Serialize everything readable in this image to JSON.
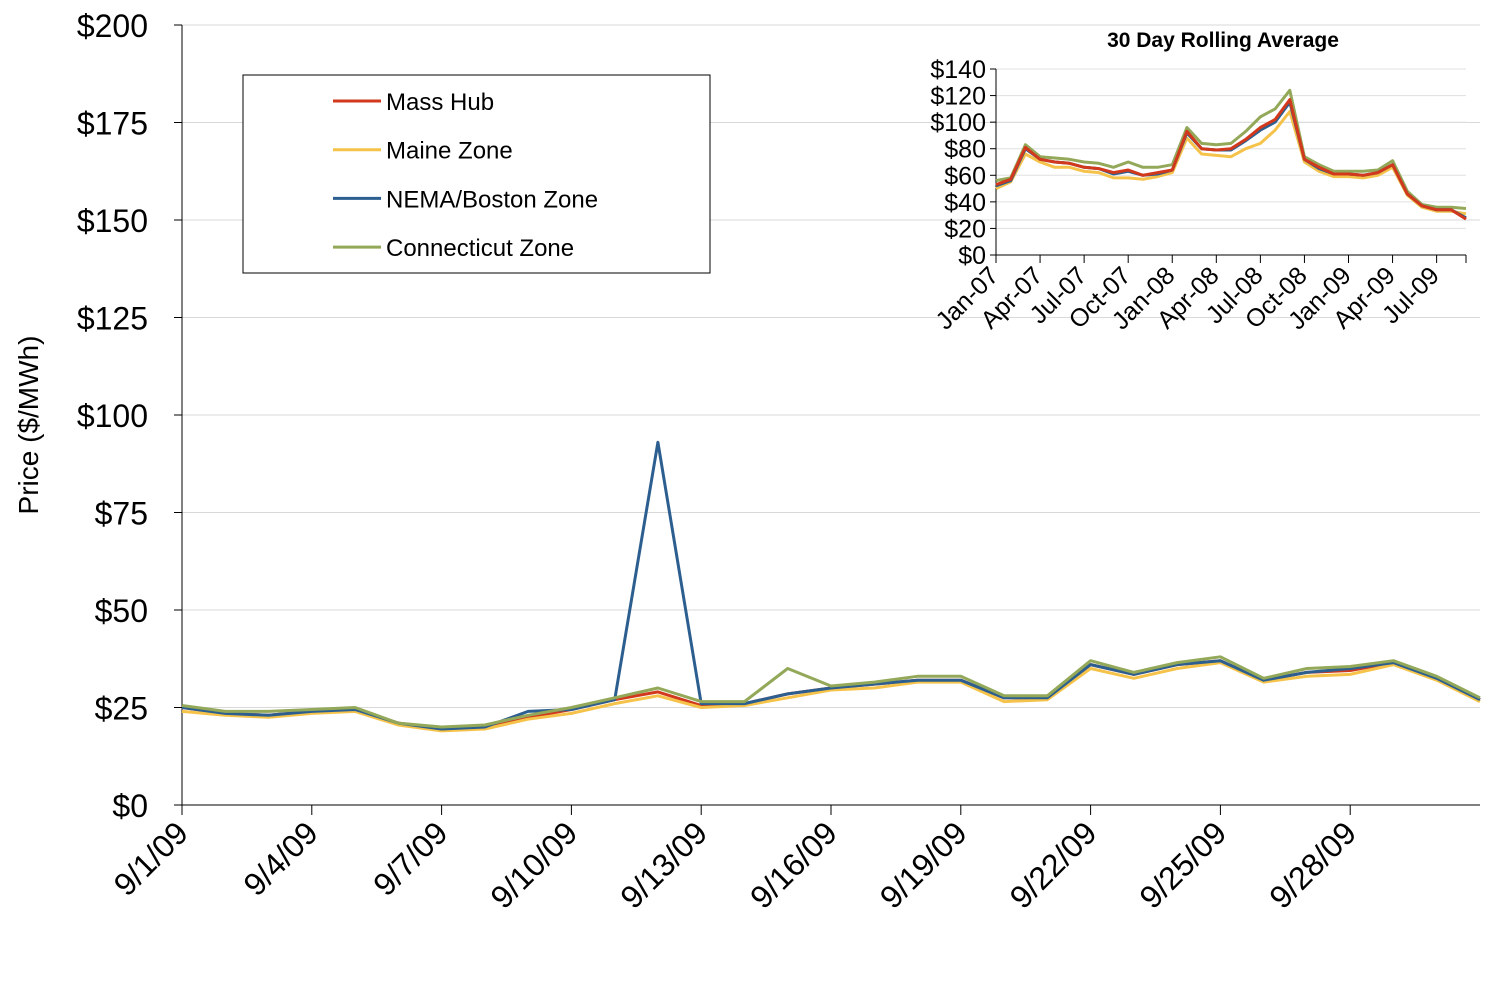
{
  "chart_data": [
    {
      "type": "line",
      "title": "",
      "xlabel": "",
      "ylabel": "Price ($/MWh)",
      "ylim": [
        0,
        200
      ],
      "yticks": [
        "$0",
        "$25",
        "$50",
        "$75",
        "$100",
        "$125",
        "$150",
        "$175",
        "$200"
      ],
      "xticks": [
        "9/1/09",
        "9/4/09",
        "9/7/09",
        "9/10/09",
        "9/13/09",
        "9/16/09",
        "9/19/09",
        "9/22/09",
        "9/25/09",
        "9/28/09"
      ],
      "grid": "horizontal",
      "legend": "top-left",
      "x": [
        "9/1/09",
        "9/2/09",
        "9/3/09",
        "9/4/09",
        "9/5/09",
        "9/6/09",
        "9/7/09",
        "9/8/09",
        "9/9/09",
        "9/10/09",
        "9/11/09",
        "9/12/09",
        "9/13/09",
        "9/14/09",
        "9/15/09",
        "9/16/09",
        "9/17/09",
        "9/18/09",
        "9/19/09",
        "9/20/09",
        "9/21/09",
        "9/22/09",
        "9/23/09",
        "9/24/09",
        "9/25/09",
        "9/26/09",
        "9/27/09",
        "9/28/09",
        "9/29/09",
        "9/30/09",
        "10/1/09"
      ],
      "series": [
        {
          "name": "Mass Hub",
          "color": "#d2381c",
          "values": [
            25.0,
            23.5,
            23.0,
            24.0,
            24.5,
            21.0,
            19.5,
            20.0,
            22.5,
            24.5,
            27.0,
            29.0,
            25.5,
            26.0,
            28.5,
            30.0,
            31.0,
            32.0,
            32.0,
            27.5,
            27.5,
            36.0,
            33.5,
            36.0,
            37.0,
            32.0,
            34.0,
            34.5,
            36.5,
            32.5,
            27.0
          ]
        },
        {
          "name": "Maine Zone",
          "color": "#f6c34a",
          "values": [
            24.0,
            23.0,
            22.5,
            23.5,
            24.0,
            20.5,
            19.0,
            19.5,
            22.0,
            23.5,
            26.0,
            28.0,
            25.0,
            25.5,
            27.5,
            29.5,
            30.0,
            31.5,
            31.5,
            26.5,
            27.0,
            35.0,
            32.5,
            35.0,
            36.5,
            31.5,
            33.0,
            33.5,
            36.0,
            32.0,
            26.5
          ]
        },
        {
          "name": "NEMA/Boston Zone",
          "color": "#2c5f8f",
          "values": [
            25.0,
            23.5,
            23.0,
            24.0,
            24.5,
            21.0,
            19.5,
            20.0,
            24.0,
            24.5,
            27.0,
            93.0,
            26.0,
            26.0,
            28.5,
            30.0,
            31.0,
            32.0,
            32.0,
            27.5,
            27.5,
            36.0,
            33.5,
            36.0,
            37.0,
            32.0,
            34.0,
            35.0,
            36.5,
            32.5,
            27.0
          ]
        },
        {
          "name": "Connecticut Zone",
          "color": "#93a959",
          "values": [
            25.5,
            24.0,
            24.0,
            24.5,
            25.0,
            21.0,
            20.0,
            20.5,
            23.0,
            25.0,
            27.5,
            30.0,
            26.5,
            26.5,
            35.0,
            30.5,
            31.5,
            33.0,
            33.0,
            28.0,
            28.0,
            37.0,
            34.0,
            36.5,
            38.0,
            32.5,
            35.0,
            35.5,
            37.0,
            33.0,
            27.5
          ]
        }
      ]
    },
    {
      "type": "line",
      "title": "30 Day Rolling Average",
      "xlabel": "",
      "ylabel": "",
      "ylim": [
        0,
        140
      ],
      "yticks": [
        "$0",
        "$20",
        "$40",
        "$60",
        "$80",
        "$100",
        "$120",
        "$140"
      ],
      "xticks": [
        "Jan-07",
        "Apr-07",
        "Jul-07",
        "Oct-07",
        "Jan-08",
        "Apr-08",
        "Jul-08",
        "Oct-08",
        "Jan-09",
        "Apr-09",
        "Jul-09"
      ],
      "grid": "horizontal",
      "x_months": [
        "Jan-07",
        "Feb-07",
        "Mar-07",
        "Apr-07",
        "May-07",
        "Jun-07",
        "Jul-07",
        "Aug-07",
        "Sep-07",
        "Oct-07",
        "Nov-07",
        "Dec-07",
        "Jan-08",
        "Feb-08",
        "Mar-08",
        "Apr-08",
        "May-08",
        "Jun-08",
        "Jul-08",
        "Aug-08",
        "Sep-08",
        "Oct-08",
        "Nov-08",
        "Dec-08",
        "Jan-09",
        "Feb-09",
        "Mar-09",
        "Apr-09",
        "May-09",
        "Jun-09",
        "Jul-09",
        "Aug-09",
        "Sep-09"
      ],
      "series": [
        {
          "name": "Maine Zone",
          "color": "#f6c34a",
          "values": [
            50,
            55,
            76,
            70,
            66,
            66,
            63,
            62,
            58,
            58,
            57,
            59,
            62,
            88,
            76,
            75,
            74,
            80,
            84,
            94,
            108,
            70,
            63,
            59,
            59,
            58,
            60,
            66,
            45,
            36,
            33,
            33,
            31
          ]
        },
        {
          "name": "Connecticut Zone",
          "color": "#93a959",
          "values": [
            56,
            58,
            83,
            74,
            73,
            72,
            70,
            69,
            66,
            70,
            66,
            66,
            68,
            96,
            84,
            83,
            84,
            93,
            104,
            110,
            124,
            74,
            68,
            63,
            63,
            63,
            64,
            71,
            48,
            38,
            36,
            36,
            35
          ]
        },
        {
          "name": "NEMA/Boston Zone",
          "color": "#2c5f8f",
          "values": [
            52,
            56,
            80,
            72,
            70,
            69,
            66,
            65,
            61,
            63,
            60,
            61,
            64,
            92,
            80,
            79,
            79,
            86,
            94,
            100,
            115,
            72,
            65,
            61,
            61,
            60,
            62,
            68,
            46,
            37,
            34,
            34,
            28
          ]
        },
        {
          "name": "Mass Hub",
          "color": "#d2381c",
          "values": [
            53,
            57,
            81,
            72,
            70,
            69,
            66,
            65,
            62,
            64,
            60,
            62,
            64,
            93,
            80,
            79,
            80,
            87,
            96,
            102,
            117,
            72,
            66,
            61,
            61,
            60,
            62,
            68,
            46,
            37,
            34,
            34,
            27
          ]
        }
      ]
    }
  ]
}
